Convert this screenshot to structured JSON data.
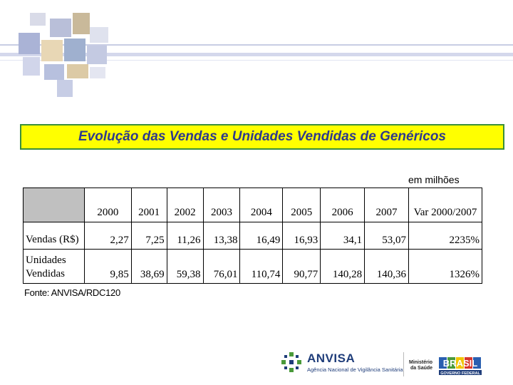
{
  "title": "Evolução das Vendas e Unidades Vendidas de Genéricos",
  "unit_note": "em milhões",
  "table": {
    "header": [
      "2000",
      "2001",
      "2002",
      "2003",
      "2004",
      "2005",
      "2006",
      "2007",
      "Var 2000/2007"
    ],
    "rows": [
      {
        "label_lines": [
          "Vendas (R$)"
        ],
        "values": [
          "2,27",
          "7,25",
          "11,26",
          "13,38",
          "16,49",
          "16,93",
          "34,1",
          "53,07",
          "2235%"
        ]
      },
      {
        "label_lines": [
          "Unidades",
          "Vendidas"
        ],
        "values": [
          "9,85",
          "38,69",
          "59,38",
          "76,01",
          "110,74",
          "90,77",
          "140,28",
          "140,36",
          "1326%"
        ]
      }
    ]
  },
  "source": "Fonte: ANVISA/RDC120",
  "footer": {
    "anvisa_name": "ANVISA",
    "anvisa_subtitle": "Agência Nacional de Vigilância Sanitária",
    "ministerio_line1": "Ministério",
    "ministerio_line2": "da Saúde",
    "brasil_text": "BRASIL",
    "brasil_sub": "GOVERNO FEDERAL"
  },
  "colors": {
    "title_bg": "#ffff00",
    "title_border": "#3a8f3a",
    "title_text": "#2f3a8c",
    "header_corner": "#c0c0c0",
    "anvisa_blue": "#1f3d7a",
    "anvisa_green": "#4a9a3a"
  }
}
